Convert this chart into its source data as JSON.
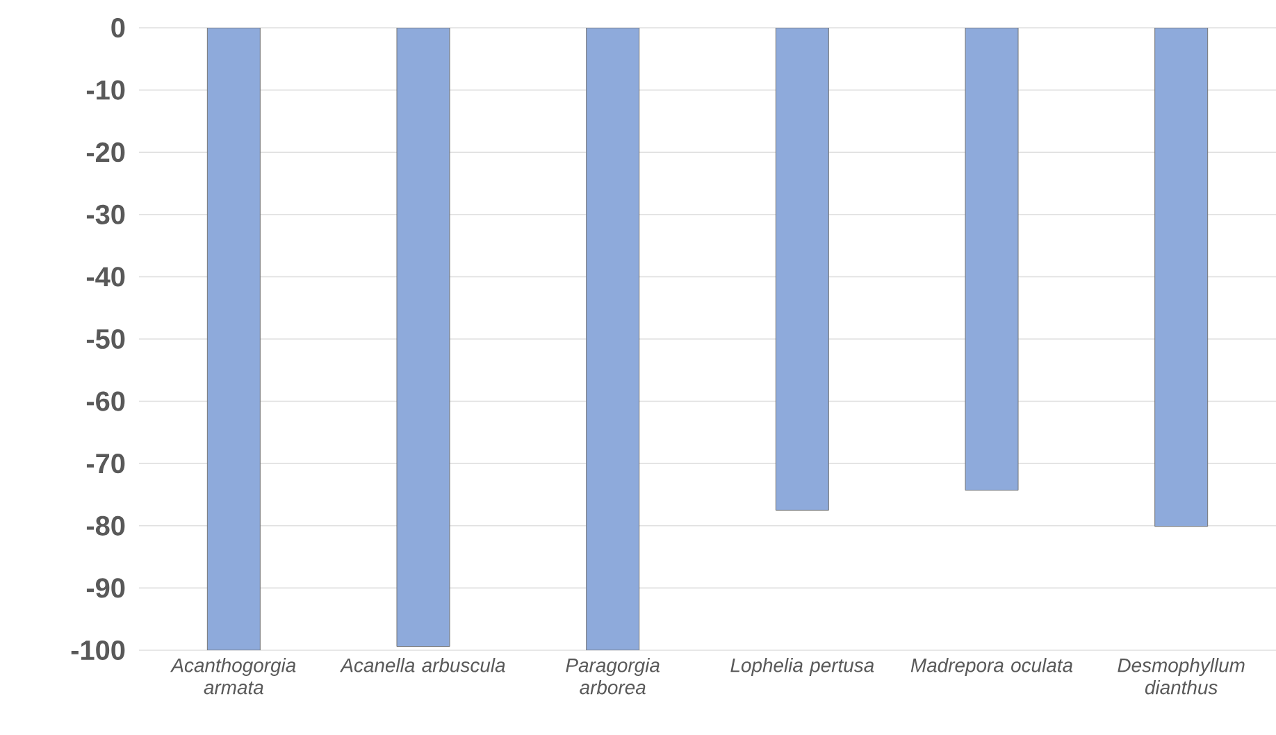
{
  "chart_data": {
    "type": "bar",
    "categories": [
      "Acanthogorgia armata",
      "Acanella arbuscula",
      "Paragorgia arborea",
      "Lophelia pertusa",
      "Madrepora oculata",
      "Desmophyllum dianthus"
    ],
    "values": [
      -100,
      -99.4,
      -100,
      -77.5,
      -74.3,
      -80.1
    ],
    "color": "#8eaadb",
    "ylim": [
      -100,
      0
    ],
    "yticks": [
      0,
      -10,
      -20,
      -30,
      -40,
      -50,
      -60,
      -70,
      -80,
      -90,
      -100
    ],
    "grid": "y"
  }
}
